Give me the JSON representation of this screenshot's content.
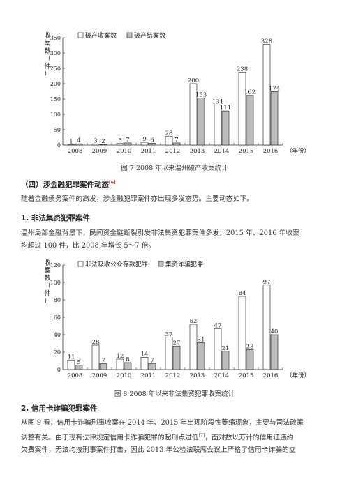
{
  "chart_data": [
    {
      "type": "bar",
      "ylabel": "收案数（件）",
      "xlabel": "（年份）",
      "categories": [
        "2008",
        "2009",
        "2010",
        "2011",
        "2012",
        "2013",
        "2014",
        "2015",
        "2016"
      ],
      "ylim": [
        0,
        350
      ],
      "yticks": [
        0,
        50,
        100,
        150,
        200,
        250,
        300,
        350
      ],
      "series": [
        {
          "name": "破产收案数",
          "values": [
            1,
            3,
            5,
            9,
            28,
            200,
            131,
            238,
            328
          ],
          "color": "#ffffff"
        },
        {
          "name": "破产结案数",
          "values": [
            4,
            2,
            7,
            6,
            7,
            153,
            111,
            162,
            174
          ],
          "color": "#bdbdbd"
        }
      ],
      "legend": "top-left",
      "caption": "图 7  2008 年以来温州破产收案统计"
    },
    {
      "type": "bar",
      "ylabel": "收案数（件）",
      "xlabel": "（年份）",
      "categories": [
        "2008",
        "2009",
        "2010",
        "2011",
        "2012",
        "2013",
        "2014",
        "2015",
        "2016"
      ],
      "ylim": [
        0,
        120
      ],
      "yticks": [
        0,
        20,
        40,
        60,
        80,
        100,
        120
      ],
      "series": [
        {
          "name": "非法吸收公众存款犯罪",
          "values": [
            11,
            28,
            12,
            14,
            37,
            52,
            47,
            84,
            97
          ],
          "color": "#ffffff"
        },
        {
          "name": "集资诈骗犯罪",
          "values": [
            5,
            7,
            8,
            7,
            27,
            31,
            21,
            23,
            40
          ],
          "color": "#bdbdbd"
        }
      ],
      "legend": "top-left",
      "caption": "图 8  2008 年以来非法集资犯罪收案统计"
    }
  ],
  "text": {
    "section4": "（四）涉金融犯罪案件动态",
    "section4_note": "[6]",
    "para1": "随着金融债务案件的高发，涉金融犯罪案件亦出现多发态势。主要动态如下。",
    "sub1": "1. 非法集资犯罪案件",
    "para2_l1": "温州局部金融背景下，民间资金链断裂引发非法集资犯罪案件多发，2015 年、2016 年收案",
    "para2_l2": "均超过 100 件，比 2008 年增长 5～7 倍。",
    "sub2": "2. 信用卡诈骗犯罪案件",
    "para3_l1": "从图 9 看，信用卡诈骗刑事收案在 2014 年、2015 年出现阶段性萎缩现象，主要与司法政策",
    "para3_l2a": "调整有关。由于现有法律规定信用卡诈骗犯罪的起刑点过低",
    "para3_note": "[7]",
    "para3_l2b": "，面对数以万计的信用证违约",
    "para3_l3": "欠费案件，无法均按刑事案件打击，因此 2013 年公检法联席会议上严格了信用卡诈骗的立"
  }
}
